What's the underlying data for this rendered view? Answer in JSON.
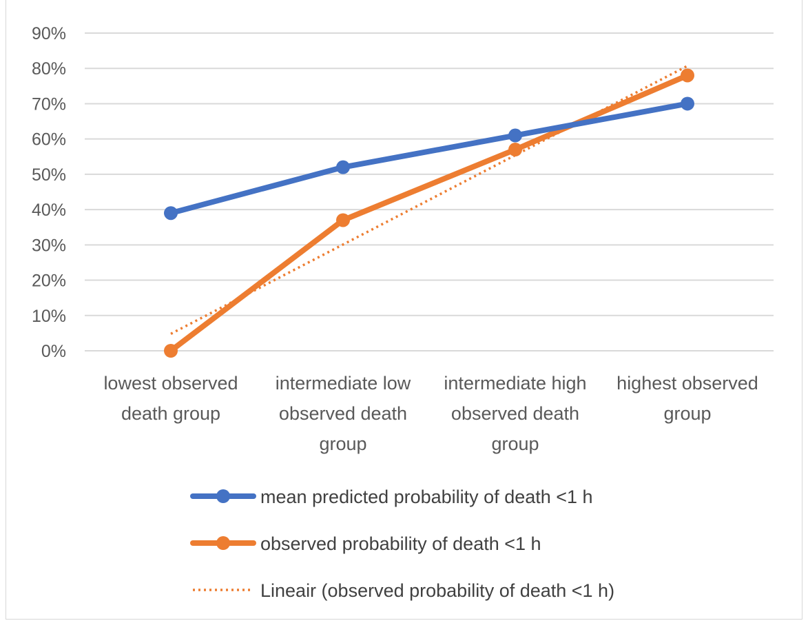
{
  "chart_data": {
    "type": "line",
    "title": "",
    "xlabel": "",
    "ylabel": "",
    "categories": [
      [
        "lowest observed",
        "death group"
      ],
      [
        "intermediate low",
        "observed death",
        "group"
      ],
      [
        "intermediate high",
        "observed death",
        "group"
      ],
      [
        "highest observed",
        "group"
      ]
    ],
    "ylim": [
      0,
      0.9
    ],
    "yticks": [
      0,
      0.1,
      0.2,
      0.3,
      0.4,
      0.5,
      0.6,
      0.7,
      0.8,
      0.9
    ],
    "ytick_labels": [
      "0%",
      "10%",
      "20%",
      "30%",
      "40%",
      "50%",
      "60%",
      "70%",
      "80%",
      "90%"
    ],
    "grid": true,
    "legend_position": "bottom",
    "series": [
      {
        "name": "mean predicted probability of death <1 h",
        "values": [
          0.39,
          0.52,
          0.61,
          0.7
        ],
        "color": "#4472C4",
        "style": "solid-with-markers"
      },
      {
        "name": "observed probability of death <1 h",
        "values": [
          0.0,
          0.37,
          0.57,
          0.78
        ],
        "color": "#ED7D31",
        "style": "solid-with-markers"
      },
      {
        "name": "Lineair (observed probability of death <1 h)",
        "values": [
          0.048,
          0.301,
          0.554,
          0.807
        ],
        "color": "#ED7D31",
        "style": "dotted-trendline"
      }
    ]
  }
}
